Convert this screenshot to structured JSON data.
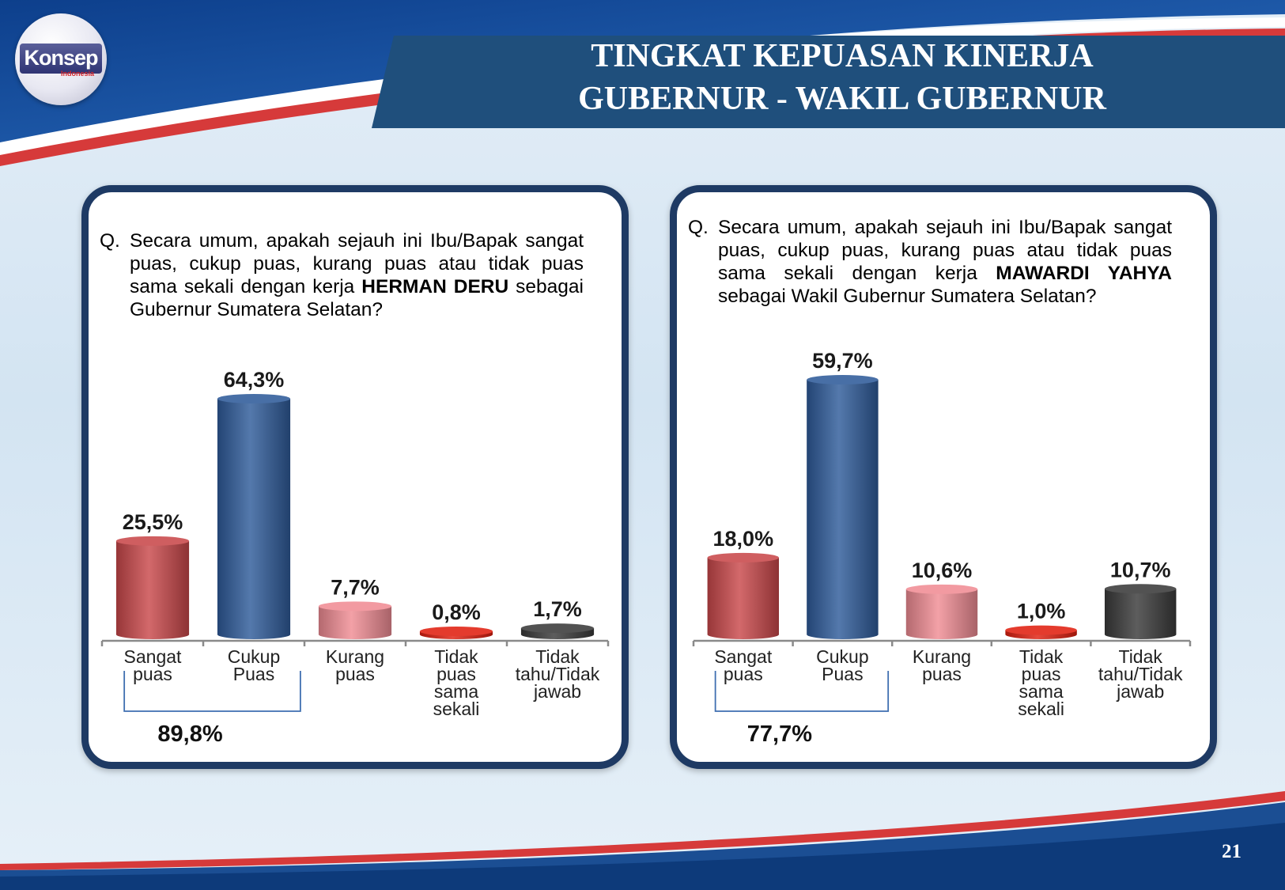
{
  "logo": {
    "brand_text": "Konsep",
    "sub_text": "Indonesia"
  },
  "header": {
    "title_line1": "TINGKAT KEPUASAN KINERJA",
    "title_line2": "GUBERNUR - WAKIL GUBERNUR"
  },
  "colors": {
    "title_band": "#1f4f7c",
    "panel_border": "#1e3a64",
    "sangat_puas": "#c9484a",
    "cukup_puas": "#2f5b9a",
    "kurang_puas": "#f08c94",
    "tidak_puas": "#e02010",
    "tidak_tahu": "#3a3a3a",
    "bracket": "#3f6fb0"
  },
  "panels": [
    {
      "question_prefix": "Q.",
      "question_part1": "Secara umum, apakah sejauh ini Ibu/Bapak sangat puas, cukup puas, kurang puas atau tidak puas sama sekali dengan kerja ",
      "question_bold": "HERMAN DERU",
      "question_part2": " sebagai Gubernur Sumatera Selatan?",
      "bracket_total": "89,8%"
    },
    {
      "question_prefix": "Q.",
      "question_part1": "Secara umum, apakah sejauh ini Ibu/Bapak sangat puas, cukup puas, kurang puas atau tidak puas sama sekali dengan kerja ",
      "question_bold": "MAWARDI YAHYA",
      "question_part2": " sebagai Wakil Gubernur Sumatera Selatan?",
      "bracket_total": "77,7%"
    }
  ],
  "chart_data": [
    {
      "type": "bar",
      "categories": [
        [
          "Sangat",
          "puas"
        ],
        [
          "Cukup",
          "Puas"
        ],
        [
          "Kurang",
          "puas"
        ],
        [
          "Tidak",
          "puas",
          "sama",
          "sekali"
        ],
        [
          "Tidak",
          "tahu/Tidak",
          "jawab"
        ]
      ],
      "values": [
        25.5,
        64.3,
        7.7,
        0.8,
        1.7
      ],
      "value_labels": [
        "25,5%",
        "64,3%",
        "7,7%",
        "0,8%",
        "1,7%"
      ],
      "ylim": [
        0,
        70
      ],
      "grid": false
    },
    {
      "type": "bar",
      "categories": [
        [
          "Sangat",
          "puas"
        ],
        [
          "Cukup",
          "Puas"
        ],
        [
          "Kurang",
          "puas"
        ],
        [
          "Tidak",
          "puas",
          "sama",
          "sekali"
        ],
        [
          "Tidak",
          "tahu/Tidak",
          "jawab"
        ]
      ],
      "values": [
        18.0,
        59.7,
        10.6,
        1.0,
        10.7
      ],
      "value_labels": [
        "18,0%",
        "59,7%",
        "10,6%",
        "1,0%",
        "10,7%"
      ],
      "ylim": [
        0,
        65
      ],
      "grid": false
    }
  ],
  "page_number": "21"
}
